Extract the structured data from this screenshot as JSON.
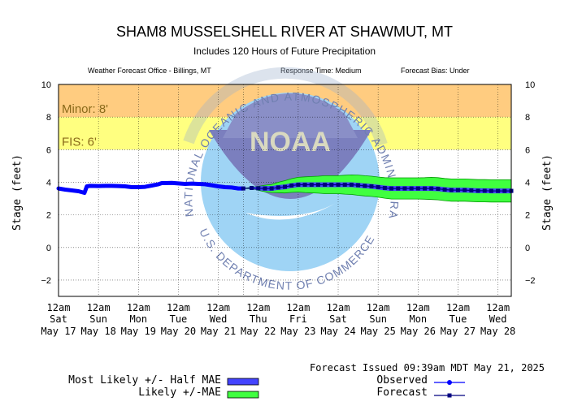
{
  "header": {
    "title": "SHAM8 MUSSELSHELL RIVER AT SHAWMUT, MT",
    "subtitle": "Includes 120 Hours of Future Precipitation",
    "office": "Weather Forecast Office - Billings, MT",
    "response": "Response Time: Medium",
    "bias": "Forecast Bias:  Under"
  },
  "logo_text": {
    "circle_text": "NATIONAL OCEANIC AND ATMOSPHERIC ADMINISTRATION",
    "bottom_text": "U.S. DEPARTMENT OF COMMERCE",
    "center_text": "NOAA"
  },
  "thresholds": [
    {
      "label": "Minor: 8'",
      "low": 8,
      "high": 10,
      "color": "#ffcc80"
    },
    {
      "label": "FIS: 6'",
      "low": 6,
      "high": 8,
      "color": "#ffff80"
    }
  ],
  "chart_data": {
    "type": "line",
    "ylabel_left": "Stage (feet)",
    "ylabel_right": "Stage (feet)",
    "ylim": [
      -3,
      10
    ],
    "yticks": [
      -2,
      0,
      2,
      4,
      6,
      8,
      10
    ],
    "xlim": [
      0,
      136
    ],
    "grid": true,
    "x_ticks": [
      {
        "x": 0,
        "l1": "12am",
        "l2": "Sat",
        "l3": "May 17"
      },
      {
        "x": 12,
        "l1": "12am",
        "l2": "Sun",
        "l3": "May 18"
      },
      {
        "x": 24,
        "l1": "12am",
        "l2": "Mon",
        "l3": "May 19"
      },
      {
        "x": 36,
        "l1": "12am",
        "l2": "Tue",
        "l3": "May 20"
      },
      {
        "x": 48,
        "l1": "12am",
        "l2": "Wed",
        "l3": "May 21"
      },
      {
        "x": 60,
        "l1": "12am",
        "l2": "Thu",
        "l3": "May 22"
      },
      {
        "x": 72,
        "l1": "12am",
        "l2": "Fri",
        "l3": "May 23"
      },
      {
        "x": 84,
        "l1": "12am",
        "l2": "Sat",
        "l3": "May 24"
      },
      {
        "x": 96,
        "l1": "12am",
        "l2": "Sun",
        "l3": "May 25"
      },
      {
        "x": 108,
        "l1": "12am",
        "l2": "Mon",
        "l3": "May 26"
      },
      {
        "x": 120,
        "l1": "12am",
        "l2": "Tue",
        "l3": "May 27"
      },
      {
        "x": 132,
        "l1": "12am",
        "l2": "Wed",
        "l3": "May 28"
      }
    ],
    "observed": {
      "name": "Observed",
      "color": "#0000ff",
      "x": [
        0,
        2,
        4,
        6,
        7.8,
        8.5,
        9.5,
        12,
        14,
        16,
        18,
        20,
        22,
        24,
        26,
        28,
        30,
        31,
        32,
        34,
        36,
        38,
        40,
        42,
        44,
        46,
        48,
        50,
        52,
        54,
        55.5
      ],
      "y": [
        3.62,
        3.55,
        3.5,
        3.45,
        3.35,
        3.75,
        3.78,
        3.77,
        3.78,
        3.78,
        3.77,
        3.75,
        3.7,
        3.7,
        3.72,
        3.8,
        3.88,
        3.95,
        3.95,
        3.96,
        3.93,
        3.9,
        3.92,
        3.9,
        3.88,
        3.82,
        3.75,
        3.7,
        3.68,
        3.62,
        3.62
      ]
    },
    "forecast": {
      "name": "Forecast",
      "color": "#000080",
      "x": [
        55.5,
        58,
        60,
        62,
        64,
        66,
        68,
        70,
        72,
        74,
        76,
        78,
        80,
        82,
        84,
        86,
        88,
        90,
        92,
        94,
        96,
        98,
        100,
        102,
        104,
        106,
        108,
        110,
        112,
        114,
        116,
        118,
        120,
        122,
        124,
        126,
        128,
        130,
        132,
        134,
        136
      ],
      "y": [
        3.62,
        3.65,
        3.63,
        3.62,
        3.62,
        3.68,
        3.72,
        3.8,
        3.85,
        3.85,
        3.85,
        3.85,
        3.85,
        3.85,
        3.85,
        3.85,
        3.85,
        3.82,
        3.78,
        3.75,
        3.7,
        3.65,
        3.62,
        3.62,
        3.62,
        3.62,
        3.62,
        3.62,
        3.62,
        3.6,
        3.55,
        3.52,
        3.52,
        3.52,
        3.5,
        3.48,
        3.48,
        3.47,
        3.47,
        3.47,
        3.47
      ]
    },
    "half_mae_band": {
      "color": "#4444ff",
      "half_width": 0.15
    },
    "mae_band": {
      "color": "#40ff40",
      "offsets": [
        0.0,
        0.05,
        0.12,
        0.2,
        0.25,
        0.32,
        0.38,
        0.42,
        0.45,
        0.48,
        0.5,
        0.52,
        0.55,
        0.55,
        0.55,
        0.58,
        0.6,
        0.62,
        0.62,
        0.62,
        0.62,
        0.63,
        0.65,
        0.65,
        0.65,
        0.65,
        0.65,
        0.66,
        0.68,
        0.68,
        0.68,
        0.68,
        0.68,
        0.68,
        0.68,
        0.68,
        0.68,
        0.68,
        0.68,
        0.68,
        0.68
      ]
    }
  },
  "footer": {
    "issued": "Forecast Issued 09:39am MDT May 21, 2025",
    "legend_half_mae": "Most Likely +/- Half MAE",
    "legend_mae": "Likely +/-MAE",
    "legend_observed": "Observed",
    "legend_forecast": "Forecast"
  }
}
